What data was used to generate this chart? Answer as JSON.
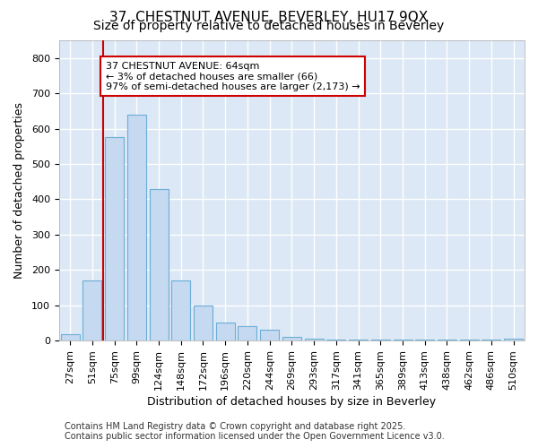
{
  "title": "37, CHESTNUT AVENUE, BEVERLEY, HU17 9QX",
  "subtitle": "Size of property relative to detached houses in Beverley",
  "xlabel": "Distribution of detached houses by size in Beverley",
  "ylabel": "Number of detached properties",
  "categories": [
    "27sqm",
    "51sqm",
    "75sqm",
    "99sqm",
    "124sqm",
    "148sqm",
    "172sqm",
    "196sqm",
    "220sqm",
    "244sqm",
    "269sqm",
    "293sqm",
    "317sqm",
    "341sqm",
    "365sqm",
    "389sqm",
    "413sqm",
    "438sqm",
    "462sqm",
    "486sqm",
    "510sqm"
  ],
  "values": [
    18,
    170,
    575,
    640,
    430,
    170,
    100,
    52,
    40,
    32,
    10,
    5,
    2,
    2,
    2,
    2,
    2,
    2,
    2,
    2,
    5
  ],
  "bar_color": "#c5d9f0",
  "bar_edge_color": "#6baed6",
  "bar_width": 0.85,
  "vline_x": 1.5,
  "vline_color": "#cc0000",
  "annotation_text": "37 CHESTNUT AVENUE: 64sqm\n← 3% of detached houses are smaller (66)\n97% of semi-detached houses are larger (2,173) →",
  "annotation_box_color": "#ffffff",
  "annotation_border_color": "#cc0000",
  "ylim": [
    0,
    850
  ],
  "yticks": [
    0,
    100,
    200,
    300,
    400,
    500,
    600,
    700,
    800
  ],
  "background_color": "#dce8f5",
  "plot_bg_color": "#dce8f5",
  "fig_bg_color": "#ffffff",
  "grid_color": "#ffffff",
  "footer": "Contains HM Land Registry data © Crown copyright and database right 2025.\nContains public sector information licensed under the Open Government Licence v3.0.",
  "title_fontsize": 11,
  "subtitle_fontsize": 10,
  "axis_label_fontsize": 9,
  "tick_fontsize": 8,
  "footer_fontsize": 7,
  "annotation_fontsize": 8
}
